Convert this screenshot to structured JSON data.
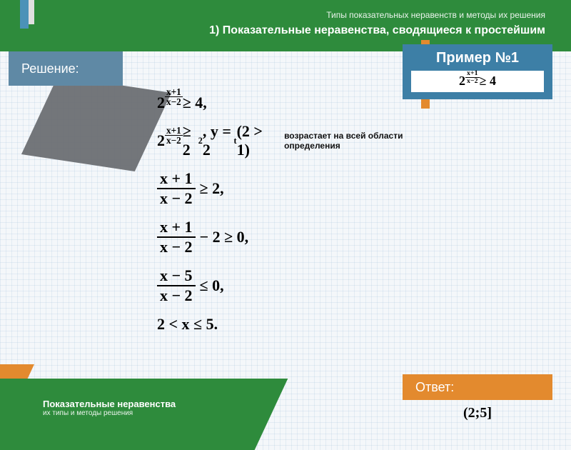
{
  "colors": {
    "header_bg": "#2e8b3c",
    "accent_orange": "#e38a2e",
    "res_bg": "#5f89a5",
    "ex_bg": "#3d7fa6"
  },
  "header": {
    "subtitle": "Типы показательных неравенств и методы их решения",
    "title": "1) Показательные неравенства, сводящиеся к простейшим"
  },
  "solution_label": "Решение:",
  "example": {
    "label": "Пример №1",
    "expr_base": "2",
    "expr_sup_num": "x+1",
    "expr_sup_den": "x−2",
    "expr_rhs": "≥ 4"
  },
  "steps": [
    {
      "kind": "pow",
      "base": "2",
      "sup_num": "x+1",
      "sup_den": "x−2",
      "tail": " ≥ 4,"
    },
    {
      "kind": "pow2",
      "base": "2",
      "sup_num": "x+1",
      "sup_den": "x−2",
      "mid": " ≥ 2",
      "exp2": "2",
      "tail2": ",  y = 2",
      "exp3": "t",
      "paren": " (2 > 1)",
      "note": "возрастает на всей области определения"
    },
    {
      "kind": "frac",
      "num": "x + 1",
      "den": "x − 2",
      "tail": " ≥ 2,"
    },
    {
      "kind": "frac",
      "num": "x + 1",
      "den": "x − 2",
      "tail": " − 2 ≥ 0,"
    },
    {
      "kind": "frac",
      "num": "x − 5",
      "den": "x − 2",
      "tail": " ≤ 0,"
    },
    {
      "kind": "plain",
      "text": "2 < x ≤ 5."
    }
  ],
  "answer": {
    "label": "Ответ:",
    "value": "(2;5]"
  },
  "footer": {
    "line1": "Показательные неравенства",
    "line2": "их типы и методы решения"
  }
}
